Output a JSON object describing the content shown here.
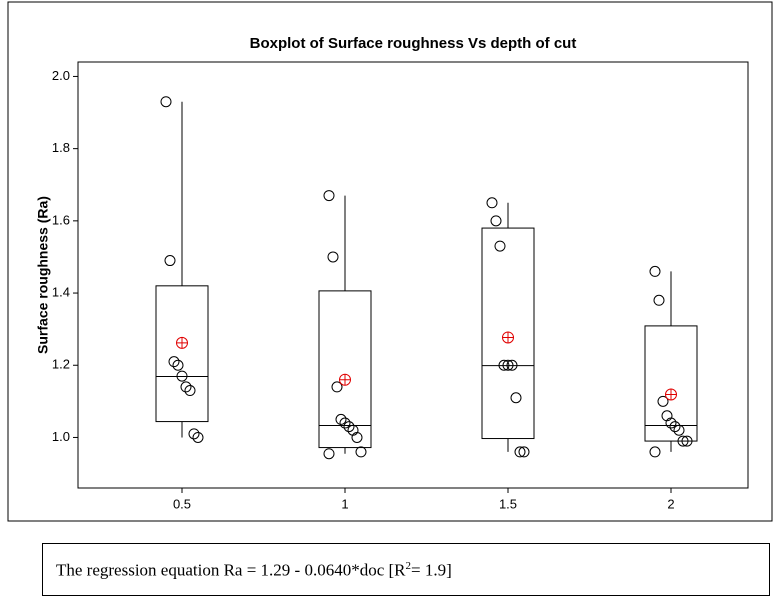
{
  "chart_data": {
    "type": "boxplot",
    "title": "Boxplot of Surface roughness Vs depth of cut",
    "y_label": "Surface roughness (Ra)",
    "categories": [
      "0.5",
      "1",
      "1.5",
      "2"
    ],
    "ylim": [
      0.86,
      2.04
    ],
    "yticks": [
      {
        "value": 1,
        "label": "1.0"
      },
      1.2,
      1.4,
      1.6,
      1.8,
      {
        "value": 2,
        "label": "2.0"
      }
    ],
    "box_color": "#000000",
    "mean_color": "#e00000",
    "boxes": [
      {
        "whisker_low": 1.0,
        "q1": 1.044,
        "median": 1.169,
        "q3": 1.42,
        "whisker_high": 1.93,
        "mean": 1.262,
        "points": [
          1.93,
          1.49,
          1.21,
          1.2,
          1.17,
          1.14,
          1.13,
          1.01,
          1.0
        ]
      },
      {
        "whisker_low": 0.955,
        "q1": 0.972,
        "median": 1.033,
        "q3": 1.406,
        "whisker_high": 1.67,
        "mean": 1.16,
        "points": [
          1.67,
          1.5,
          1.14,
          1.05,
          1.04,
          1.03,
          1.02,
          1.0,
          0.96,
          0.955
        ]
      },
      {
        "whisker_low": 0.96,
        "q1": 0.997,
        "median": 1.199,
        "q3": 1.58,
        "whisker_high": 1.65,
        "mean": 1.277,
        "points": [
          1.65,
          1.6,
          1.53,
          1.2,
          1.2,
          1.2,
          1.11,
          0.96,
          0.96
        ]
      },
      {
        "whisker_low": 0.96,
        "q1": 0.99,
        "median": 1.033,
        "q3": 1.309,
        "whisker_high": 1.46,
        "mean": 1.119,
        "points": [
          1.46,
          1.38,
          1.1,
          1.06,
          1.04,
          1.03,
          1.02,
          0.99,
          0.99,
          0.96
        ]
      }
    ]
  },
  "note": {
    "before": "The regression equation Ra = 1.29 - 0.0640*doc [R",
    "sup": "2",
    "after": "= 1.9]"
  }
}
